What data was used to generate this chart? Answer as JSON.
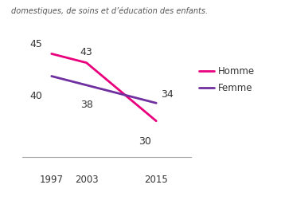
{
  "years": [
    1997,
    2003,
    2015
  ],
  "homme": [
    45,
    43,
    30
  ],
  "femme": [
    40,
    38,
    34
  ],
  "homme_color": "#e8007d",
  "femme_color": "#7030a0",
  "homme_label": "Homme",
  "femme_label": "Femme",
  "xlim": [
    1992,
    2021
  ],
  "ylim": [
    26,
    50
  ],
  "x_ticks": [
    1997,
    2003,
    2015
  ],
  "subtitle": "domestiques, de soins et d’éducation des enfants.",
  "line_width": 2.0,
  "annotation_fontsize": 9,
  "legend_fontsize": 8.5,
  "tick_fontsize": 8.5,
  "subtitle_fontsize": 7.0
}
